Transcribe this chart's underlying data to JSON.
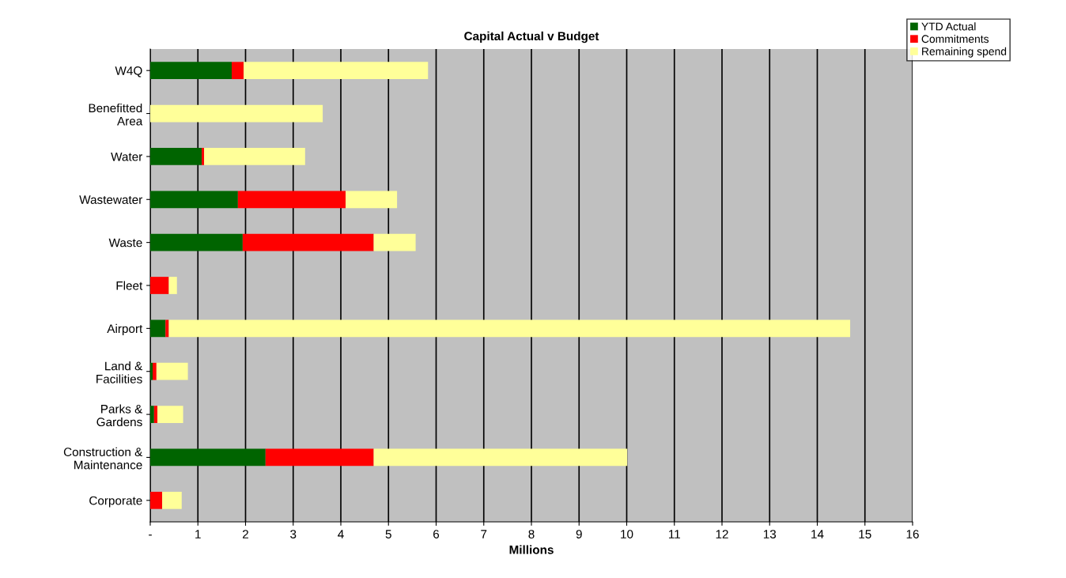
{
  "chart_data": {
    "type": "bar",
    "orientation": "horizontal",
    "stacked": true,
    "title": "Capital Actual v Budget",
    "xlabel": "Millions",
    "categories": [
      "W4Q",
      "Benefitted\nArea",
      "Water",
      "Wastewater",
      "Waste",
      "Fleet",
      "Airport",
      "Land &\nFacilities",
      "Parks &\nGardens",
      "Construction &\nMaintenance",
      "Corporate"
    ],
    "series": [
      {
        "name": "YTD Actual",
        "color": "#006400",
        "values": [
          1.71,
          0,
          1.08,
          1.84,
          1.94,
          0,
          0.32,
          0.05,
          0.08,
          2.42,
          0
        ]
      },
      {
        "name": "Commitments",
        "color": "#ff0000",
        "values": [
          0.25,
          0,
          0.05,
          2.26,
          2.75,
          0.39,
          0.07,
          0.08,
          0.07,
          2.27,
          0.25
        ]
      },
      {
        "name": "Remaining spend",
        "color": "#ffff99",
        "values": [
          3.87,
          3.62,
          2.12,
          1.08,
          0.88,
          0.17,
          14.3,
          0.66,
          0.54,
          5.32,
          0.41
        ]
      }
    ],
    "xlim": [
      0,
      16
    ],
    "xticks": [
      {
        "value": 0,
        "label": "-"
      },
      1,
      2,
      3,
      4,
      5,
      6,
      7,
      8,
      9,
      10,
      11,
      12,
      13,
      14,
      15,
      16
    ],
    "grid": "x",
    "legend": "top right"
  }
}
